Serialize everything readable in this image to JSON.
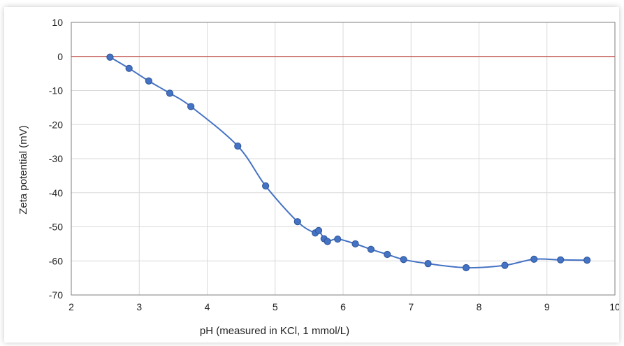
{
  "chart_data": {
    "type": "scatter",
    "title": "",
    "xlabel": "pH (measured in KCl, 1 mmol/L)",
    "ylabel": "Zeta potential (mV)",
    "xlim": [
      2,
      10
    ],
    "ylim": [
      -70,
      10
    ],
    "xticks": [
      "2",
      "3",
      "4",
      "5",
      "6",
      "7",
      "8",
      "9",
      "10"
    ],
    "yticks": [
      "10",
      "0",
      "-10",
      "-20",
      "-30",
      "-40",
      "-50",
      "-60",
      "-70"
    ],
    "grid": true,
    "smooth_line": true,
    "zero_line_color": "#c0504d",
    "series_color": "#4472c4",
    "series": [
      {
        "x": [
          2.57,
          2.85,
          3.14,
          3.45,
          3.76,
          4.45,
          4.86,
          5.33,
          5.59,
          5.64,
          5.72,
          5.77,
          5.92,
          6.18,
          6.41,
          6.65,
          6.89,
          7.25,
          7.81,
          8.38,
          8.81,
          9.2,
          9.59
        ],
        "y": [
          -0.2,
          -3.5,
          -7.2,
          -10.8,
          -14.7,
          -26.3,
          -38.0,
          -48.5,
          -51.8,
          -51.1,
          -53.5,
          -54.3,
          -53.6,
          -55.0,
          -56.6,
          -58.1,
          -59.6,
          -60.8,
          -62.0,
          -61.3,
          -59.5,
          -59.7,
          -59.8
        ]
      }
    ]
  }
}
